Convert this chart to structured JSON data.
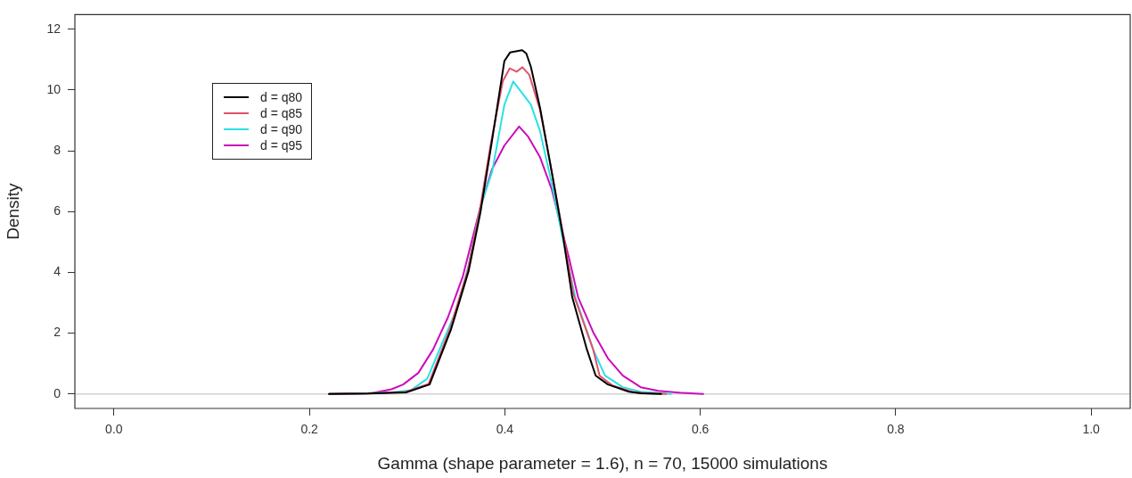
{
  "chart_data": {
    "type": "line",
    "xlabel": "Gamma (shape parameter = 1.6), n = 70, 15000 simulations",
    "ylabel": "Density",
    "xlim": [
      -0.04,
      1.04
    ],
    "ylim": [
      -0.48,
      12.48
    ],
    "xticks": [
      {
        "value": 0,
        "label": "0.0"
      },
      0.2,
      0.4,
      0.6,
      0.8,
      {
        "value": 1,
        "label": "1.0"
      }
    ],
    "yticks": [
      0,
      2,
      4,
      6,
      8,
      10,
      12
    ],
    "grid": false,
    "legend": "top left",
    "marker": "none",
    "line_style": "solid",
    "ref_lines": [
      {
        "axis": "y",
        "value": 0,
        "color": "#d3d3d3"
      }
    ],
    "series": [
      {
        "name": "d = q80",
        "color": "#000000",
        "x": [
          0.22,
          0.26,
          0.299,
          0.323,
          0.345,
          0.363,
          0.375,
          0.387,
          0.3995,
          0.4055,
          0.4177,
          0.422,
          0.4267,
          0.436,
          0.448,
          0.46,
          0.469,
          0.484,
          0.493,
          0.5055,
          0.527,
          0.539,
          0.56
        ],
        "values": [
          0,
          0.01,
          0.05,
          0.31,
          2.13,
          4.05,
          5.97,
          8.36,
          10.95,
          11.24,
          11.31,
          11.2,
          10.76,
          9.42,
          7.31,
          5.1,
          3.18,
          1.46,
          0.6,
          0.31,
          0.07,
          0.02,
          0
        ]
      },
      {
        "name": "d = q85",
        "color": "#df536b",
        "x": [
          0.22,
          0.26,
          0.298,
          0.322,
          0.344,
          0.362,
          0.374,
          0.386,
          0.398,
          0.405,
          0.412,
          0.418,
          0.425,
          0.436,
          0.448,
          0.46,
          0.47,
          0.4904,
          0.497,
          0.51,
          0.53,
          0.545,
          0.565
        ],
        "values": [
          0,
          0.01,
          0.06,
          0.33,
          2.15,
          4.05,
          5.97,
          8.3,
          10.3,
          10.71,
          10.6,
          10.75,
          10.5,
          9.35,
          7.3,
          5.2,
          3.3,
          1.46,
          0.6,
          0.28,
          0.07,
          0.02,
          0
        ]
      },
      {
        "name": "d = q90",
        "color": "#28e2e5",
        "x": [
          0.22,
          0.25,
          0.284,
          0.304,
          0.3206,
          0.3357,
          0.351,
          0.363,
          0.375,
          0.387,
          0.3995,
          0.4086,
          0.4177,
          0.4268,
          0.436,
          0.448,
          0.46,
          0.472,
          0.4904,
          0.5025,
          0.5207,
          0.539,
          0.57
        ],
        "values": [
          0,
          0.01,
          0.05,
          0.12,
          0.5,
          1.65,
          2.8,
          4.24,
          6.15,
          7.31,
          9.51,
          10.28,
          9.9,
          9.51,
          8.65,
          6.92,
          5.0,
          3.18,
          1.46,
          0.6,
          0.22,
          0.07,
          0
        ]
      },
      {
        "name": "d = q95",
        "color": "#cd0bbc",
        "x": [
          0.2204,
          0.263,
          0.284,
          0.296,
          0.3115,
          0.3266,
          0.3418,
          0.357,
          0.375,
          0.387,
          0.3995,
          0.4146,
          0.424,
          0.436,
          0.448,
          0.457,
          0.466,
          0.475,
          0.4904,
          0.5055,
          0.5207,
          0.539,
          0.557,
          0.5813,
          0.603
        ],
        "values": [
          0,
          0.02,
          0.15,
          0.31,
          0.69,
          1.46,
          2.52,
          3.86,
          6.15,
          7.4,
          8.17,
          8.8,
          8.46,
          7.79,
          6.73,
          5.58,
          4.43,
          3.18,
          2.03,
          1.17,
          0.6,
          0.22,
          0.1,
          0.03,
          0
        ]
      }
    ]
  }
}
